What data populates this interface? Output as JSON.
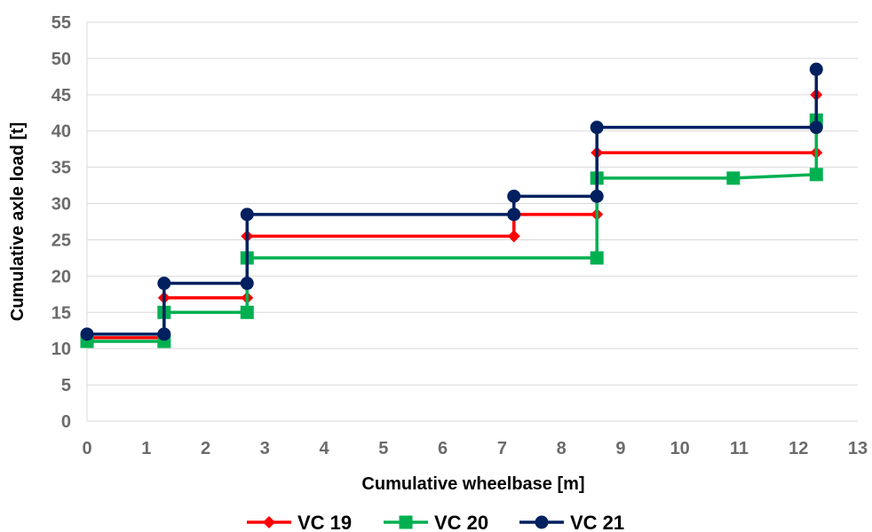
{
  "chart_data": {
    "type": "line",
    "step": true,
    "xlabel": "Cumulative wheelbase [m]",
    "ylabel": "Cumulative axle load [t]",
    "xlim": [
      0,
      13
    ],
    "ylim": [
      0,
      55
    ],
    "x_ticks": [
      0,
      1,
      2,
      3,
      4,
      5,
      6,
      7,
      8,
      9,
      10,
      11,
      12,
      13
    ],
    "y_ticks": [
      0,
      5,
      10,
      15,
      20,
      25,
      30,
      35,
      40,
      45,
      50,
      55
    ],
    "grid": "horizontal",
    "legend_position": "bottom",
    "series": [
      {
        "name": "VC 19",
        "color": "#ff0000",
        "marker": "diamond",
        "points": [
          [
            0,
            11.5
          ],
          [
            1.3,
            11.5
          ],
          [
            1.3,
            17
          ],
          [
            2.7,
            17
          ],
          [
            2.7,
            25.5
          ],
          [
            7.2,
            25.5
          ],
          [
            7.2,
            28.5
          ],
          [
            8.6,
            28.5
          ],
          [
            8.6,
            37
          ],
          [
            12.3,
            37
          ],
          [
            12.3,
            45
          ]
        ]
      },
      {
        "name": "VC 20",
        "color": "#00b050",
        "marker": "square",
        "points": [
          [
            0,
            11
          ],
          [
            1.3,
            11
          ],
          [
            1.3,
            15
          ],
          [
            2.7,
            15
          ],
          [
            2.7,
            22.5
          ],
          [
            8.6,
            22.5
          ],
          [
            8.6,
            33.5
          ],
          [
            10.9,
            33.5
          ],
          [
            12.3,
            34
          ],
          [
            12.3,
            41.5
          ]
        ]
      },
      {
        "name": "VC 21",
        "color": "#002060",
        "marker": "circle",
        "points": [
          [
            0,
            12
          ],
          [
            1.3,
            12
          ],
          [
            1.3,
            19
          ],
          [
            2.7,
            19
          ],
          [
            2.7,
            28.5
          ],
          [
            7.2,
            28.5
          ],
          [
            7.2,
            31
          ],
          [
            8.6,
            31
          ],
          [
            8.6,
            40.5
          ],
          [
            12.3,
            40.5
          ],
          [
            12.3,
            48.5
          ]
        ]
      }
    ]
  }
}
